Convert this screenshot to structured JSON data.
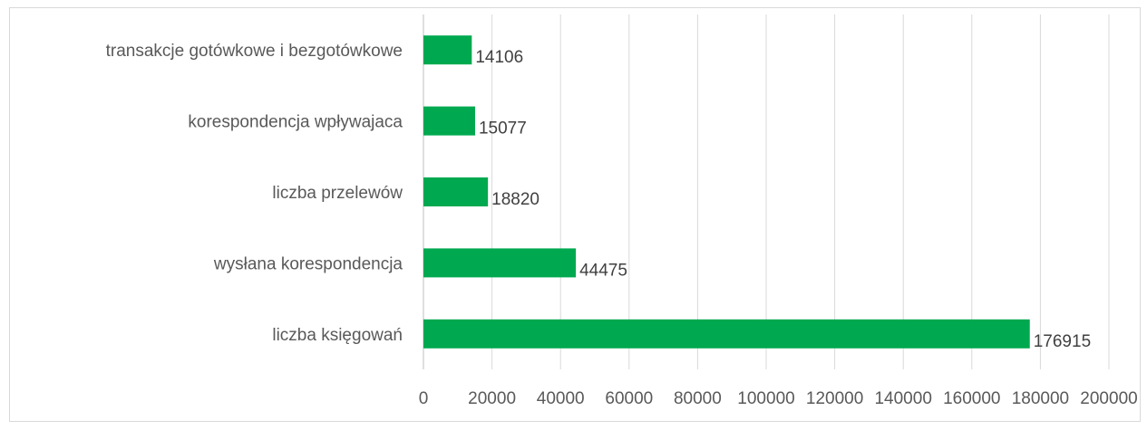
{
  "chart_data": {
    "type": "bar",
    "orientation": "horizontal",
    "categories": [
      "transakcje gotówkowe i bezgotówkowe",
      "korespondencja wpływajaca",
      "liczba przelewów",
      "wysłana korespondencja",
      "liczba księgowań"
    ],
    "values": [
      14106,
      15077,
      18820,
      44475,
      176915
    ],
    "value_labels": [
      "14106",
      "15077",
      "18820",
      "44475",
      "176915"
    ],
    "title": "",
    "xlabel": "",
    "ylabel": "",
    "xlim": [
      0,
      200000
    ],
    "x_ticks": [
      0,
      20000,
      40000,
      60000,
      80000,
      100000,
      120000,
      140000,
      160000,
      180000,
      200000
    ],
    "x_tick_labels": [
      "0",
      "20000",
      "40000",
      "60000",
      "80000",
      "100000",
      "120000",
      "140000",
      "160000",
      "180000",
      "200000"
    ],
    "grid": "vertical",
    "legend": "none",
    "colors": {
      "bar": "#00A94F",
      "grid": "#d9d9d9"
    }
  }
}
